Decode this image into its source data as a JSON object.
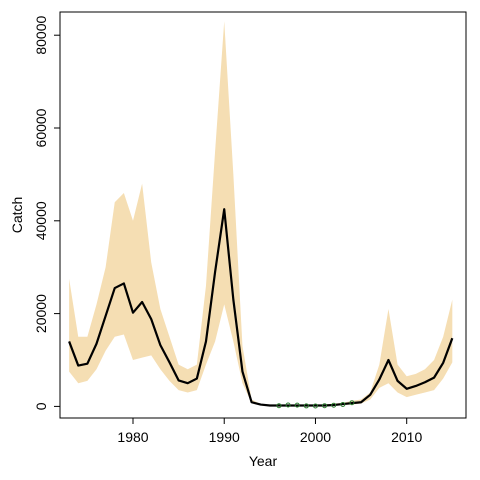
{
  "chart_data": {
    "type": "line",
    "xlabel": "Year",
    "ylabel": "Catch",
    "xlim": [
      1972,
      2016.5
    ],
    "ylim": [
      -2500,
      85000
    ],
    "xticks": [
      1980,
      1990,
      2000,
      2010
    ],
    "yticks": [
      0,
      20000,
      40000,
      60000,
      80000
    ],
    "band_color": "#f5deb3",
    "line_color": "#000000",
    "point_color": "#2e7d32",
    "series": [
      {
        "type": "area-band",
        "x": [
          1973,
          1974,
          1975,
          1976,
          1977,
          1978,
          1979,
          1980,
          1981,
          1982,
          1983,
          1984,
          1985,
          1986,
          1987,
          1988,
          1989,
          1990,
          1991,
          1992,
          1993,
          1994,
          1995,
          1996,
          1997,
          1998,
          1999,
          2000,
          2001,
          2002,
          2003,
          2004,
          2005,
          2006,
          2007,
          2008,
          2009,
          2010,
          2011,
          2012,
          2013,
          2014,
          2015
        ],
        "upper": [
          27500,
          15000,
          15000,
          22000,
          30000,
          44000,
          46000,
          40000,
          48000,
          31000,
          21000,
          15000,
          9000,
          8000,
          9000,
          26000,
          55000,
          83000,
          50000,
          13000,
          1500,
          500,
          400,
          400,
          400,
          400,
          400,
          400,
          400,
          600,
          800,
          1200,
          1500,
          3000,
          9000,
          21000,
          9000,
          6500,
          7000,
          8000,
          10000,
          15000,
          23000
        ],
        "lower": [
          7500,
          5000,
          5500,
          8000,
          12000,
          15000,
          15500,
          10000,
          10500,
          11000,
          8000,
          5500,
          3500,
          3000,
          3500,
          9000,
          14000,
          22000,
          14000,
          5000,
          700,
          200,
          100,
          100,
          100,
          100,
          100,
          100,
          100,
          200,
          300,
          400,
          600,
          1500,
          4000,
          5000,
          3000,
          2000,
          2500,
          3000,
          3500,
          6000,
          9500
        ]
      },
      {
        "type": "line",
        "x": [
          1973,
          1974,
          1975,
          1976,
          1977,
          1978,
          1979,
          1980,
          1981,
          1982,
          1983,
          1984,
          1985,
          1986,
          1987,
          1988,
          1989,
          1990,
          1991,
          1992,
          1993,
          1994,
          1995,
          1996,
          1997,
          1998,
          1999,
          2000,
          2001,
          2002,
          2003,
          2004,
          2005,
          2006,
          2007,
          2008,
          2009,
          2010,
          2011,
          2012,
          2013,
          2014,
          2015
        ],
        "y": [
          14000,
          8800,
          9200,
          13500,
          19500,
          25500,
          26500,
          20200,
          22500,
          18800,
          13200,
          9500,
          5600,
          5000,
          6000,
          14000,
          29000,
          42500,
          23000,
          7500,
          900,
          400,
          200,
          200,
          200,
          200,
          200,
          200,
          200,
          300,
          500,
          700,
          900,
          2500,
          5800,
          10000,
          5500,
          3800,
          4400,
          5200,
          6200,
          9400,
          14700
        ]
      },
      {
        "type": "scatter",
        "x": [
          1996,
          1997,
          1998,
          1999,
          2000,
          2001,
          2002,
          2003,
          2004
        ],
        "y": [
          150,
          300,
          280,
          100,
          80,
          150,
          250,
          400,
          800
        ]
      }
    ]
  }
}
